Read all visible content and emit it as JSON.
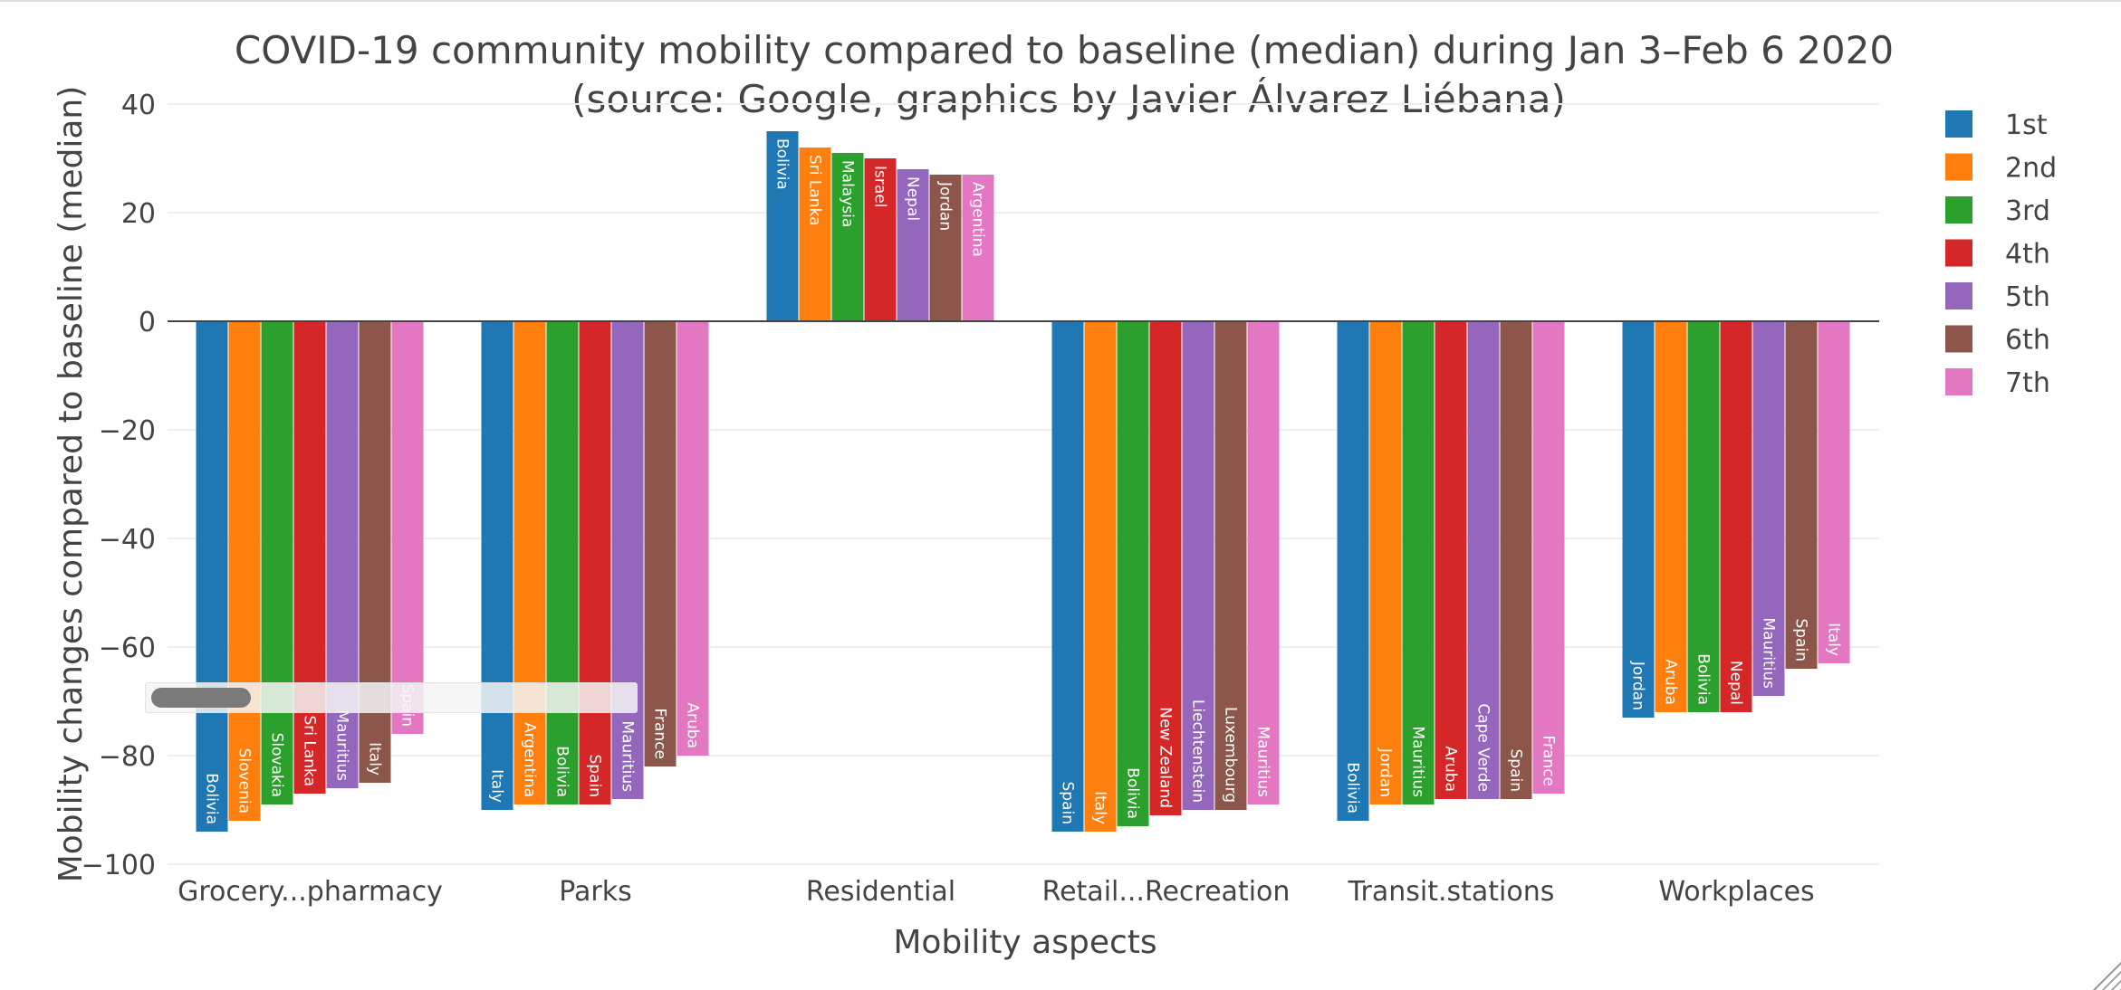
{
  "chart_data": {
    "type": "bar",
    "title_line1": "COVID-19 community mobility compared to baseline (median) during Jan 3–Feb 6 2020",
    "title_line2": "(source: Google, graphics by Javier Álvarez Liébana)",
    "xlabel": "Mobility aspects",
    "ylabel": "Mobility changes compared to baseline (median)",
    "ylim": [
      -100,
      40
    ],
    "yticks": [
      40,
      20,
      0,
      -20,
      -40,
      -60,
      -80,
      -100
    ],
    "ytick_labels": [
      "40",
      "20",
      "0",
      "−20",
      "−40",
      "−60",
      "−80",
      "−100"
    ],
    "grid": true,
    "legend_position": "top-right",
    "categories": [
      "Grocery...pharmacy",
      "Parks",
      "Residential",
      "Retail...Recreation",
      "Transit.stations",
      "Workplaces"
    ],
    "series": [
      {
        "name": "1st",
        "color": "#1f77b4",
        "values": [
          -94,
          -90,
          35,
          -94,
          -92,
          -73
        ],
        "labels": [
          "Bolivia",
          "Italy",
          "Bolivia",
          "Spain",
          "Bolivia",
          "Jordan"
        ]
      },
      {
        "name": "2nd",
        "color": "#ff7f0e",
        "values": [
          -92,
          -89,
          32,
          -94,
          -89,
          -72
        ],
        "labels": [
          "Slovenia",
          "Argentina",
          "Sri Lanka",
          "Italy",
          "Jordan",
          "Aruba"
        ]
      },
      {
        "name": "3rd",
        "color": "#2ca02c",
        "values": [
          -89,
          -89,
          31,
          -93,
          -89,
          -72
        ],
        "labels": [
          "Slovakia",
          "Bolivia",
          "Malaysia",
          "Bolivia",
          "Mauritius",
          "Bolivia"
        ]
      },
      {
        "name": "4th",
        "color": "#d62728",
        "values": [
          -87,
          -89,
          30,
          -91,
          -88,
          -72
        ],
        "labels": [
          "Sri Lanka",
          "Spain",
          "Israel",
          "New Zealand",
          "Aruba",
          "Nepal"
        ]
      },
      {
        "name": "5th",
        "color": "#9467bd",
        "values": [
          -86,
          -88,
          28,
          -90,
          -88,
          -69
        ],
        "labels": [
          "Mauritius",
          "Mauritius",
          "Nepal",
          "Liechtenstein",
          "Cape Verde",
          "Mauritius"
        ]
      },
      {
        "name": "6th",
        "color": "#8c564b",
        "values": [
          -85,
          -82,
          27,
          -90,
          -88,
          -64
        ],
        "labels": [
          "Italy",
          "France",
          "Jordan",
          "Luxembourg",
          "Spain",
          "Spain"
        ]
      },
      {
        "name": "7th",
        "color": "#e377c2",
        "values": [
          -76,
          -80,
          27,
          -89,
          -87,
          -63
        ],
        "labels": [
          "Spain",
          "Aruba",
          "Argentina",
          "Mauritius",
          "France",
          "Italy"
        ]
      }
    ]
  }
}
